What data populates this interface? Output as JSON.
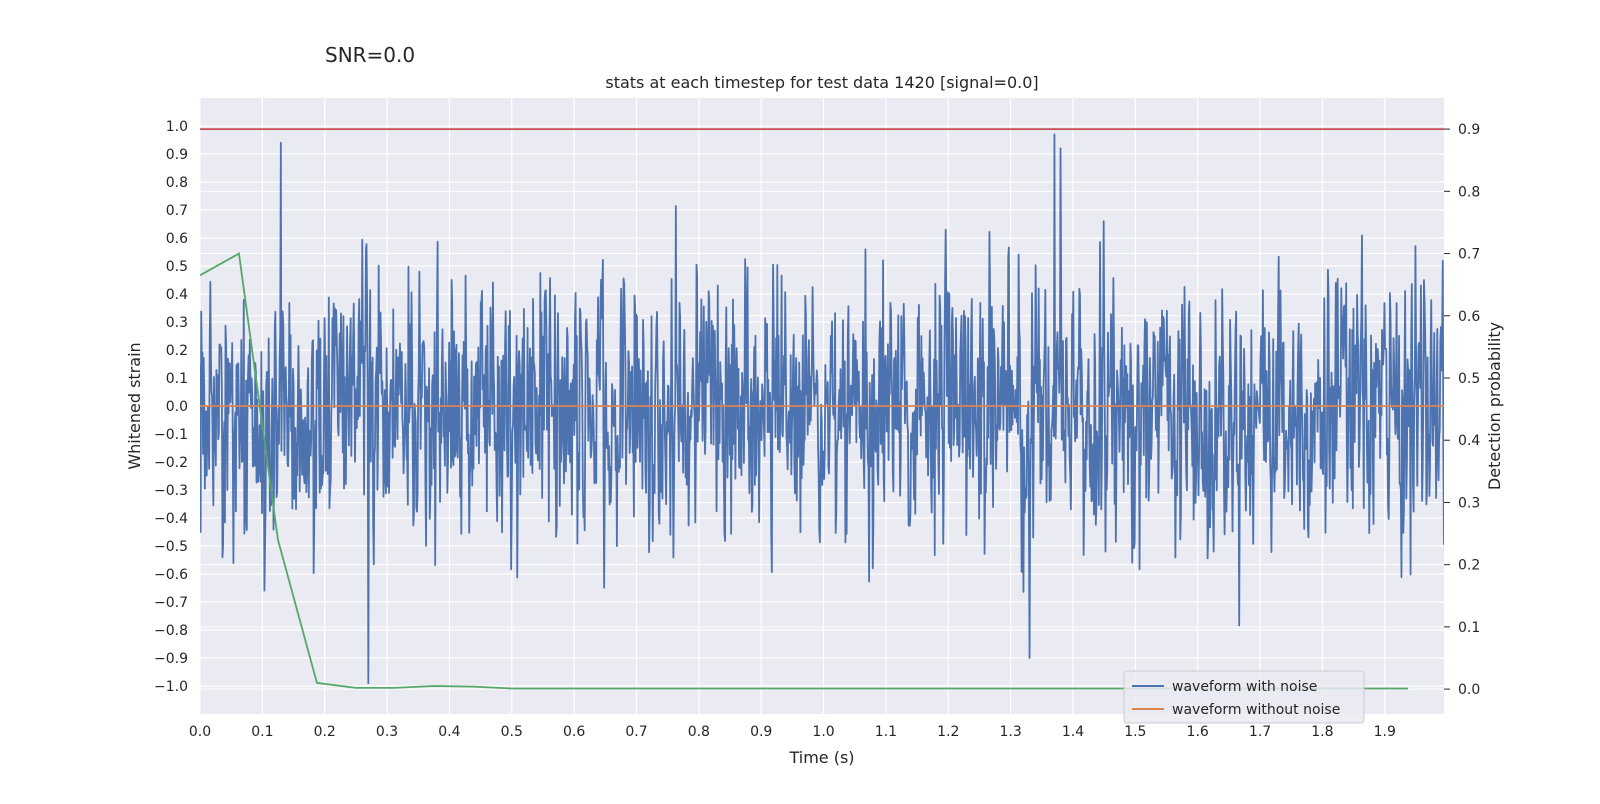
{
  "suptitle": "SNR=0.0",
  "chart_data": {
    "type": "line",
    "title": "stats at each timestep for test data 1420 [signal=0.0]",
    "xlabel": "Time (s)",
    "ylabel_left": "Whitened strain",
    "ylabel_right": "Detection probability",
    "xlim": [
      0.0,
      1.995
    ],
    "ylim_left": [
      -1.1,
      1.1
    ],
    "ylim_right": [
      -0.04,
      0.95
    ],
    "x_ticks": [
      "0.0",
      "0.1",
      "0.2",
      "0.3",
      "0.4",
      "0.5",
      "0.6",
      "0.7",
      "0.8",
      "0.9",
      "1.0",
      "1.1",
      "1.2",
      "1.3",
      "1.4",
      "1.5",
      "1.6",
      "1.7",
      "1.8",
      "1.9"
    ],
    "y_ticks_left": [
      "1.0",
      "0.9",
      "0.8",
      "0.7",
      "0.6",
      "0.5",
      "0.4",
      "0.3",
      "0.2",
      "0.1",
      "0.0",
      "−0.1",
      "−0.2",
      "−0.3",
      "−0.4",
      "−0.5",
      "−0.6",
      "−0.7",
      "−0.8",
      "−0.9",
      "−1.0"
    ],
    "y_ticks_right": [
      "0.9",
      "0.8",
      "0.7",
      "0.6",
      "0.5",
      "0.4",
      "0.3",
      "0.2",
      "0.1",
      "0.0"
    ],
    "threshold_line": {
      "value": 0.9,
      "axis": "right",
      "color": "#c44e52"
    },
    "series": [
      {
        "name": "waveform with noise",
        "axis": "left",
        "color": "#4c72b0",
        "kind": "noise",
        "samples": 2048,
        "approx_std": 0.3,
        "approx_range": [
          -0.99,
          0.98
        ],
        "peaks": [
          {
            "t": 0.13,
            "v": 0.94
          },
          {
            "t": 0.27,
            "v": -0.99
          },
          {
            "t": 1.37,
            "v": 0.97
          },
          {
            "t": 1.38,
            "v": 0.92
          },
          {
            "t": 1.33,
            "v": -0.9
          }
        ]
      },
      {
        "name": "waveform without noise",
        "axis": "left",
        "color": "#dd8452",
        "x": [
          0.0,
          1.995
        ],
        "values": [
          0.0,
          0.0
        ]
      },
      {
        "name": "detection probability",
        "axis": "right",
        "color": "#55a868",
        "x": [
          0.0,
          0.0625,
          0.125,
          0.1875,
          0.25,
          0.3125,
          0.375,
          0.4375,
          0.5,
          0.5625,
          0.625,
          0.6875,
          0.75,
          0.8125,
          0.875,
          0.9375,
          1.0,
          1.0625,
          1.125,
          1.1875,
          1.25,
          1.3125,
          1.375,
          1.4375,
          1.5,
          1.5625,
          1.625,
          1.6875,
          1.75,
          1.8125,
          1.875,
          1.9375
        ],
        "values": [
          0.665,
          0.7,
          0.24,
          0.01,
          0.002,
          0.002,
          0.005,
          0.004,
          0.001,
          0.001,
          0.001,
          0.001,
          0.001,
          0.001,
          0.001,
          0.001,
          0.001,
          0.001,
          0.001,
          0.001,
          0.001,
          0.001,
          0.001,
          0.001,
          0.001,
          0.001,
          0.001,
          0.001,
          0.001,
          0.001,
          0.001,
          0.001
        ]
      }
    ],
    "legend": {
      "position": "lower-right",
      "entries": [
        "waveform with noise",
        "waveform without noise"
      ]
    }
  }
}
